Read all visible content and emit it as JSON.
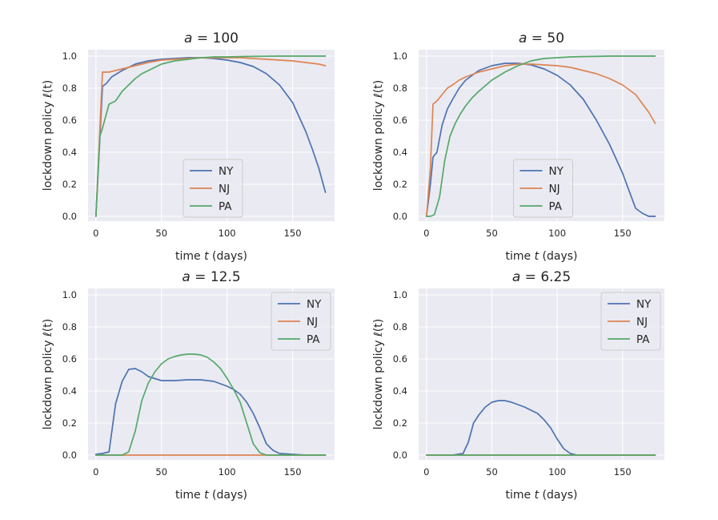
{
  "chart_data": [
    {
      "type": "line",
      "title_prefix": "a",
      "title_op": " = ",
      "title_value": "100",
      "xlabel": "time t (days)",
      "xlabel_pre": "time ",
      "xlabel_var": "t",
      "xlabel_post": " (days)",
      "ylabel": "lockdown policy ℓ(t)",
      "ylabel_pre": "lockdown policy ",
      "ylabel_var": "ℓ",
      "ylabel_post": "(t)",
      "xlim": [
        -6,
        182
      ],
      "ylim": [
        -0.03,
        1.04
      ],
      "xticks": [
        0,
        50,
        100,
        150
      ],
      "yticks": [
        0.0,
        0.2,
        0.4,
        0.6,
        0.8,
        1.0
      ],
      "xtick_labels": [
        "0",
        "50",
        "100",
        "150"
      ],
      "ytick_labels": [
        "0.0",
        "0.2",
        "0.4",
        "0.6",
        "0.8",
        "1.0"
      ],
      "legend_position": "lower-center",
      "series": [
        {
          "name": "NY",
          "color": "#4c72b0",
          "x": [
            0,
            5,
            8,
            12,
            16,
            20,
            25,
            30,
            40,
            50,
            60,
            70,
            80,
            90,
            100,
            110,
            120,
            130,
            140,
            150,
            160,
            165,
            170,
            175
          ],
          "values": [
            0.0,
            0.81,
            0.83,
            0.87,
            0.89,
            0.91,
            0.93,
            0.95,
            0.97,
            0.98,
            0.985,
            0.99,
            0.99,
            0.985,
            0.975,
            0.96,
            0.935,
            0.89,
            0.82,
            0.71,
            0.53,
            0.42,
            0.3,
            0.15
          ]
        },
        {
          "name": "NJ",
          "color": "#dd8452",
          "x": [
            0,
            5,
            10,
            15,
            20,
            30,
            40,
            50,
            60,
            70,
            80,
            90,
            100,
            110,
            120,
            130,
            140,
            150,
            160,
            170,
            175
          ],
          "values": [
            0.0,
            0.9,
            0.9,
            0.91,
            0.92,
            0.94,
            0.96,
            0.975,
            0.98,
            0.985,
            0.99,
            0.99,
            0.99,
            0.99,
            0.985,
            0.98,
            0.975,
            0.97,
            0.96,
            0.95,
            0.94
          ]
        },
        {
          "name": "PA",
          "color": "#55a868",
          "x": [
            0,
            3,
            5,
            10,
            15,
            20,
            25,
            30,
            35,
            40,
            50,
            60,
            70,
            80,
            90,
            100,
            110,
            120,
            130,
            140,
            150,
            160,
            170,
            175
          ],
          "values": [
            0.0,
            0.5,
            0.55,
            0.7,
            0.72,
            0.78,
            0.82,
            0.86,
            0.89,
            0.91,
            0.95,
            0.97,
            0.98,
            0.99,
            0.995,
            0.995,
            0.997,
            0.998,
            0.999,
            1.0,
            1.0,
            1.0,
            1.0,
            1.0
          ]
        }
      ]
    },
    {
      "type": "line",
      "title_prefix": "a",
      "title_op": " = ",
      "title_value": "50",
      "xlabel": "time t (days)",
      "xlabel_pre": "time ",
      "xlabel_var": "t",
      "xlabel_post": " (days)",
      "ylabel": "lockdown policy ℓ(t)",
      "ylabel_pre": "lockdown policy ",
      "ylabel_var": "ℓ",
      "ylabel_post": "(t)",
      "xlim": [
        -6,
        182
      ],
      "ylim": [
        -0.03,
        1.04
      ],
      "xticks": [
        0,
        50,
        100,
        150
      ],
      "yticks": [
        0.0,
        0.2,
        0.4,
        0.6,
        0.8,
        1.0
      ],
      "xtick_labels": [
        "0",
        "50",
        "100",
        "150"
      ],
      "ytick_labels": [
        "0.0",
        "0.2",
        "0.4",
        "0.6",
        "0.8",
        "1.0"
      ],
      "legend_position": "lower-center",
      "series": [
        {
          "name": "NY",
          "color": "#4c72b0",
          "x": [
            0,
            3,
            5,
            8,
            12,
            16,
            20,
            25,
            30,
            40,
            50,
            60,
            70,
            80,
            90,
            100,
            110,
            120,
            130,
            140,
            150,
            160,
            165,
            170,
            175
          ],
          "values": [
            0.0,
            0.2,
            0.37,
            0.4,
            0.57,
            0.67,
            0.73,
            0.8,
            0.85,
            0.91,
            0.94,
            0.955,
            0.955,
            0.945,
            0.92,
            0.88,
            0.82,
            0.73,
            0.6,
            0.45,
            0.27,
            0.05,
            0.02,
            0.0,
            0.0
          ]
        },
        {
          "name": "NJ",
          "color": "#dd8452",
          "x": [
            0,
            3,
            5,
            8,
            12,
            16,
            20,
            25,
            30,
            40,
            50,
            60,
            70,
            80,
            90,
            100,
            110,
            120,
            130,
            140,
            150,
            160,
            170,
            175
          ],
          "values": [
            0.0,
            0.3,
            0.7,
            0.72,
            0.76,
            0.8,
            0.82,
            0.85,
            0.87,
            0.9,
            0.92,
            0.94,
            0.95,
            0.95,
            0.945,
            0.94,
            0.93,
            0.91,
            0.89,
            0.86,
            0.82,
            0.76,
            0.65,
            0.58
          ]
        },
        {
          "name": "PA",
          "color": "#55a868",
          "x": [
            0,
            3,
            6,
            10,
            14,
            18,
            22,
            26,
            30,
            35,
            40,
            50,
            60,
            70,
            80,
            90,
            100,
            110,
            120,
            130,
            140,
            150,
            160,
            170,
            175
          ],
          "values": [
            0.0,
            0.0,
            0.01,
            0.12,
            0.35,
            0.5,
            0.58,
            0.64,
            0.69,
            0.74,
            0.78,
            0.85,
            0.9,
            0.94,
            0.97,
            0.985,
            0.99,
            0.995,
            0.997,
            0.998,
            1.0,
            1.0,
            1.0,
            1.0,
            1.0
          ]
        }
      ]
    },
    {
      "type": "line",
      "title_prefix": "a",
      "title_op": " = ",
      "title_value": "12.5",
      "xlabel": "time t (days)",
      "xlabel_pre": "time ",
      "xlabel_var": "t",
      "xlabel_post": " (days)",
      "ylabel": "lockdown policy ℓ(t)",
      "ylabel_pre": "lockdown policy ",
      "ylabel_var": "ℓ",
      "ylabel_post": "(t)",
      "xlim": [
        -6,
        182
      ],
      "ylim": [
        -0.03,
        1.04
      ],
      "xticks": [
        0,
        50,
        100,
        150
      ],
      "yticks": [
        0.0,
        0.2,
        0.4,
        0.6,
        0.8,
        1.0
      ],
      "xtick_labels": [
        "0",
        "50",
        "100",
        "150"
      ],
      "ytick_labels": [
        "0.0",
        "0.2",
        "0.4",
        "0.6",
        "0.8",
        "1.0"
      ],
      "legend_position": "top-right",
      "series": [
        {
          "name": "NY",
          "color": "#4c72b0",
          "x": [
            0,
            5,
            10,
            15,
            20,
            25,
            30,
            35,
            40,
            50,
            60,
            70,
            80,
            90,
            100,
            105,
            110,
            115,
            120,
            125,
            130,
            135,
            140,
            150,
            160,
            175
          ],
          "values": [
            0.005,
            0.01,
            0.02,
            0.32,
            0.46,
            0.535,
            0.54,
            0.52,
            0.49,
            0.465,
            0.465,
            0.47,
            0.47,
            0.46,
            0.43,
            0.41,
            0.38,
            0.33,
            0.26,
            0.17,
            0.07,
            0.03,
            0.01,
            0.005,
            0.0,
            0.0
          ]
        },
        {
          "name": "NJ",
          "color": "#dd8452",
          "x": [
            0,
            25,
            50,
            75,
            100,
            125,
            150,
            175
          ],
          "values": [
            0.0,
            0.0,
            0.0,
            0.0,
            0.0,
            0.0,
            0.0,
            0.0
          ]
        },
        {
          "name": "PA",
          "color": "#55a868",
          "x": [
            0,
            20,
            25,
            30,
            35,
            40,
            45,
            50,
            55,
            60,
            65,
            70,
            75,
            80,
            85,
            90,
            95,
            100,
            105,
            110,
            115,
            120,
            125,
            130,
            150,
            175
          ],
          "values": [
            0.0,
            0.0,
            0.02,
            0.15,
            0.34,
            0.45,
            0.52,
            0.57,
            0.6,
            0.615,
            0.625,
            0.63,
            0.63,
            0.625,
            0.61,
            0.58,
            0.54,
            0.48,
            0.41,
            0.33,
            0.2,
            0.07,
            0.015,
            0.0,
            0.0,
            0.0
          ]
        }
      ]
    },
    {
      "type": "line",
      "title_prefix": "a",
      "title_op": " = ",
      "title_value": "6.25",
      "xlabel": "time t (days)",
      "xlabel_pre": "time ",
      "xlabel_var": "t",
      "xlabel_post": " (days)",
      "ylabel": "lockdown policy ℓ(t)",
      "ylabel_pre": "lockdown policy ",
      "ylabel_var": "ℓ",
      "ylabel_post": "(t)",
      "xlim": [
        -6,
        182
      ],
      "ylim": [
        -0.03,
        1.04
      ],
      "xticks": [
        0,
        50,
        100,
        150
      ],
      "yticks": [
        0.0,
        0.2,
        0.4,
        0.6,
        0.8,
        1.0
      ],
      "xtick_labels": [
        "0",
        "50",
        "100",
        "150"
      ],
      "ytick_labels": [
        "0.0",
        "0.2",
        "0.4",
        "0.6",
        "0.8",
        "1.0"
      ],
      "legend_position": "top-right",
      "series": [
        {
          "name": "NY",
          "color": "#4c72b0",
          "x": [
            0,
            20,
            28,
            32,
            36,
            40,
            45,
            50,
            55,
            60,
            65,
            70,
            75,
            80,
            85,
            90,
            95,
            100,
            105,
            110,
            115,
            120,
            150,
            175
          ],
          "values": [
            0.0,
            0.0,
            0.01,
            0.08,
            0.2,
            0.25,
            0.3,
            0.33,
            0.34,
            0.34,
            0.33,
            0.315,
            0.3,
            0.28,
            0.26,
            0.22,
            0.17,
            0.1,
            0.04,
            0.01,
            0.0,
            0.0,
            0.0,
            0.0
          ]
        },
        {
          "name": "NJ",
          "color": "#dd8452",
          "x": [
            0,
            25,
            50,
            75,
            100,
            125,
            150,
            175
          ],
          "values": [
            0.0,
            0.0,
            0.0,
            0.0,
            0.0,
            0.0,
            0.0,
            0.0
          ]
        },
        {
          "name": "PA",
          "color": "#55a868",
          "x": [
            0,
            25,
            50,
            75,
            100,
            125,
            150,
            175
          ],
          "values": [
            0.0,
            0.0,
            0.0,
            0.0,
            0.0,
            0.0,
            0.0,
            0.0
          ]
        }
      ]
    }
  ]
}
